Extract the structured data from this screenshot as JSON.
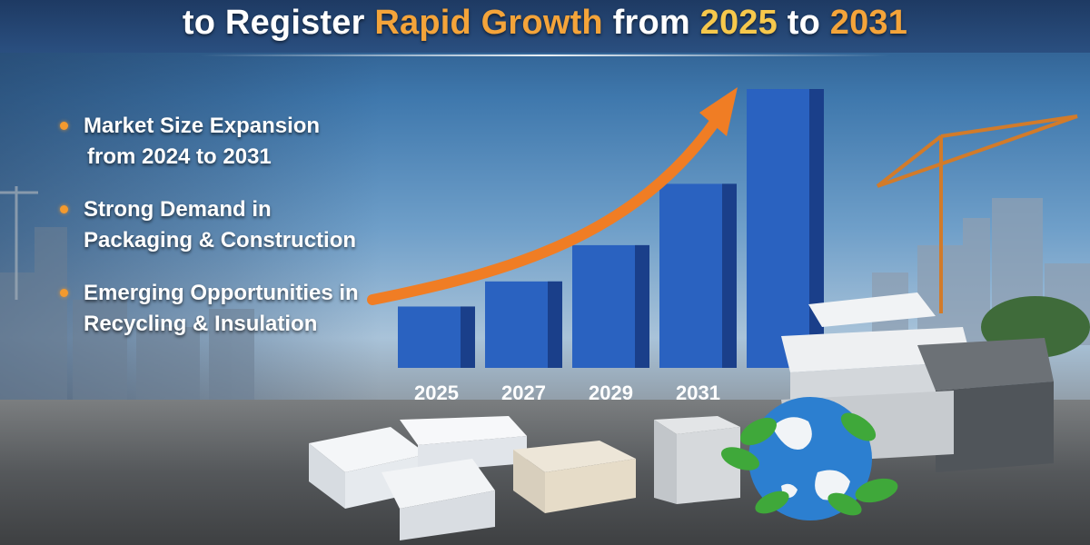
{
  "header": {
    "title_part1": "to Register ",
    "title_part2": "Rapid Growth",
    "title_part3": " from ",
    "title_part4": "2025",
    "title_part5": " to ",
    "title_part6": "2031"
  },
  "bullets": [
    {
      "line1": "Market Size Expansion",
      "line2": "from 2024 to 2031"
    },
    {
      "line1": "Strong Demand in",
      "line2": "Packaging & Construction"
    },
    {
      "line1": "Emerging Opportunities in",
      "line2": "Recycling & Insulation"
    }
  ],
  "chart_data": {
    "type": "bar",
    "categories": [
      "2025",
      "2027",
      "2029",
      "2031",
      ""
    ],
    "values": [
      22,
      31,
      44,
      66,
      100
    ],
    "ylim": [
      0,
      100
    ],
    "grid": false,
    "bar_color": "#2a62c0",
    "arrow_color": "#f07d24"
  },
  "colors": {
    "accent_orange": "#f4a43a",
    "accent_yellow": "#f6c84c",
    "bullet_dot": "#f49a2e"
  },
  "icons": [
    "globe-leaf-icon",
    "crane-icon",
    "growth-arrow-icon"
  ]
}
